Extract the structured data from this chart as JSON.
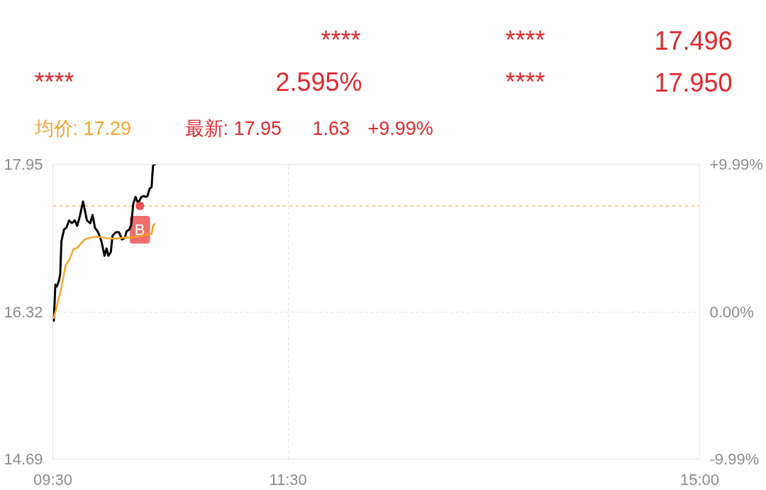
{
  "chart_data": {
    "type": "line",
    "annotations": [
      "****",
      "****",
      "17.496",
      "****",
      "2.595%",
      "****",
      "17.950",
      "均价: 17.29",
      "最新: 17.95",
      "1.63",
      "+9.99%",
      {
        "text": "B",
        "x": 10.24,
        "y": 17.49
      }
    ],
    "series": [
      {
        "color": "#000000",
        "x": [
          9.508,
          9.522,
          9.535,
          9.553,
          9.563,
          9.573,
          9.595,
          9.615,
          9.638,
          9.662,
          9.687,
          9.707,
          9.73,
          9.757,
          9.79,
          9.818,
          9.838,
          9.858,
          9.885,
          9.913,
          9.94,
          9.957,
          9.973,
          9.993,
          10.007,
          10.035,
          10.062,
          10.088,
          10.113,
          10.127,
          10.15,
          10.167,
          10.183,
          10.203,
          10.225,
          10.252,
          10.272,
          10.292,
          10.305,
          10.322,
          10.34,
          10.347,
          10.353,
          10.367
        ],
        "values": [
          16.22,
          16.62,
          16.6,
          16.67,
          16.74,
          17.1,
          17.23,
          17.25,
          17.33,
          17.3,
          17.33,
          17.27,
          17.38,
          17.54,
          17.33,
          17.3,
          17.39,
          17.25,
          17.2,
          17.1,
          16.94,
          17.02,
          16.94,
          16.98,
          17.16,
          17.2,
          17.2,
          17.12,
          17.14,
          17.21,
          17.23,
          17.28,
          17.51,
          17.59,
          17.52,
          17.59,
          17.6,
          17.59,
          17.6,
          17.68,
          17.7,
          17.85,
          17.94,
          17.95
        ]
      },
      {
        "color": "#f5a623",
        "x": [
          9.508,
          9.547,
          9.573,
          9.608,
          9.642,
          9.675,
          9.71,
          9.737,
          9.77,
          9.818,
          9.872,
          9.927,
          9.98,
          10.048,
          10.117,
          10.17,
          10.278,
          10.34,
          10.353,
          10.367
        ],
        "values": [
          16.25,
          16.45,
          16.59,
          16.83,
          16.9,
          17.01,
          17.03,
          17.07,
          17.12,
          17.14,
          17.15,
          17.14,
          17.13,
          17.13,
          17.14,
          17.14,
          17.17,
          17.18,
          17.27,
          17.29
        ]
      },
      {
        "type": "scatter",
        "color": "#ee4f4f",
        "x": [
          10.24
        ],
        "values": [
          17.49
        ]
      }
    ],
    "xlim": [
      9.5,
      15
    ],
    "xticks": [
      {
        "value": 9.5,
        "label": "09:30"
      },
      {
        "value": 11.5,
        "label": "11:30"
      },
      {
        "value": 15,
        "label": "15:00"
      }
    ],
    "ylim": [
      14.69,
      17.95
    ],
    "yticks": [
      14.69,
      16.32,
      17.95
    ],
    "y2lim": [
      -9.99,
      9.99
    ],
    "y2ticks": [
      {
        "value": -9.99,
        "label": "-9.99%"
      },
      {
        "value": 0,
        "label": "0.00%"
      },
      {
        "value": 9.99,
        "label": "+9.99%"
      }
    ],
    "ref_lines": [
      {
        "axis": "y",
        "value": 17.49,
        "color": "#f0c878",
        "line_style": "dashed"
      }
    ],
    "grid": true
  }
}
